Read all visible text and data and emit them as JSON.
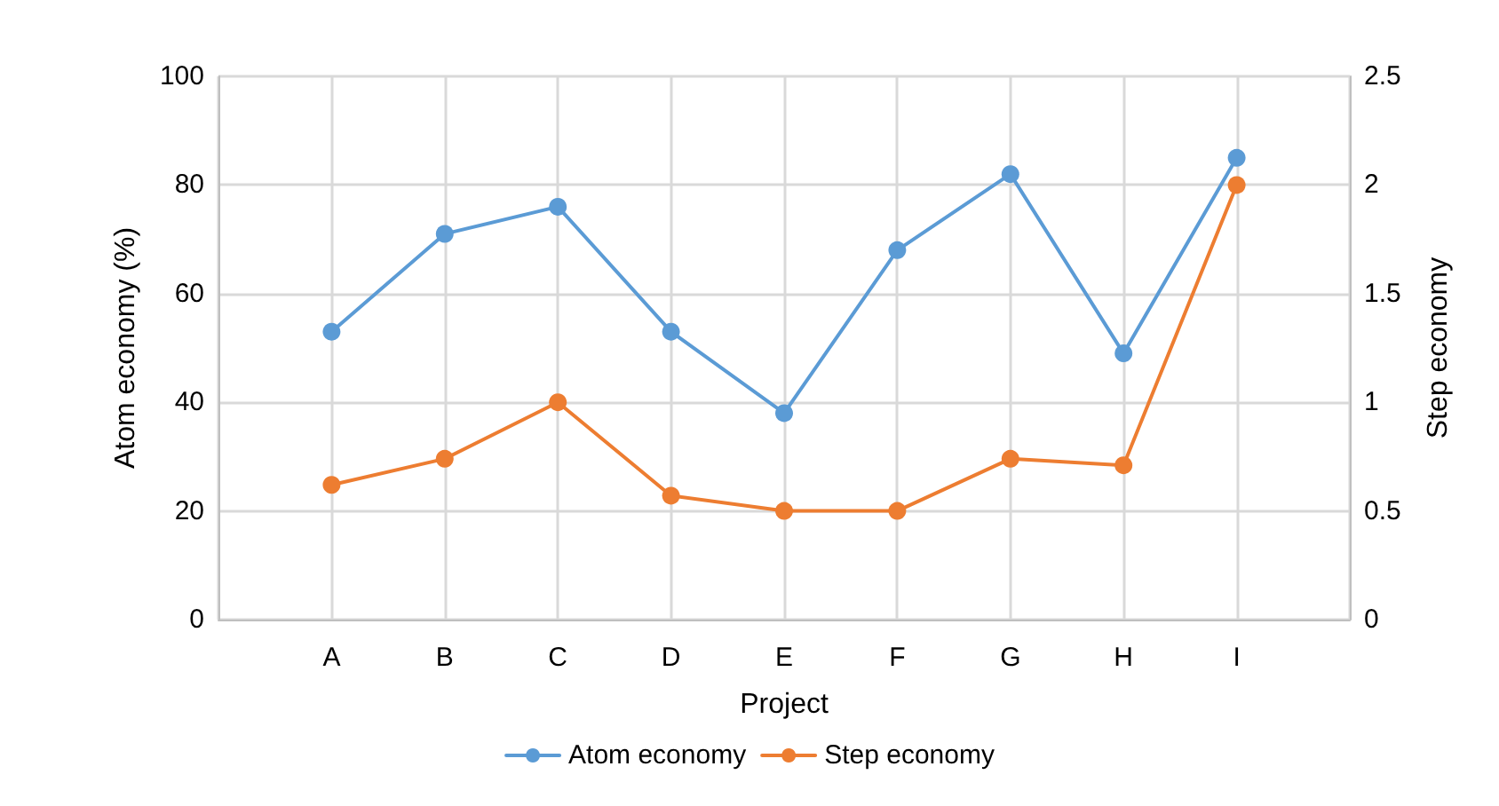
{
  "chart_data": {
    "type": "line",
    "xlabel": "Project",
    "ylabel": "Atom economy (%)",
    "y2label": "Step economy",
    "categories": [
      null,
      "A",
      "B",
      "C",
      "D",
      "E",
      "F",
      "G",
      "H",
      "I",
      null
    ],
    "series": [
      {
        "name": "Atom economy",
        "color": "#5b9bd5",
        "values": [
          null,
          53,
          71,
          76,
          53,
          38,
          68,
          82,
          49,
          85,
          null
        ]
      },
      {
        "name": "Step economy",
        "color": "#ed7d31",
        "axis": "y2",
        "values": [
          null,
          0.62,
          0.74,
          1.0,
          0.57,
          0.5,
          0.5,
          0.74,
          0.71,
          2.0,
          null
        ]
      }
    ],
    "ylim": [
      0,
      100
    ],
    "yticks": [
      0,
      20,
      40,
      60,
      80,
      100
    ],
    "y2lim": [
      0,
      2.5
    ],
    "y2ticks": [
      0,
      0.5,
      1,
      1.5,
      2,
      2.5
    ],
    "grid": true,
    "legend": "bottom",
    "marker": "circle",
    "line_style": "solid"
  }
}
